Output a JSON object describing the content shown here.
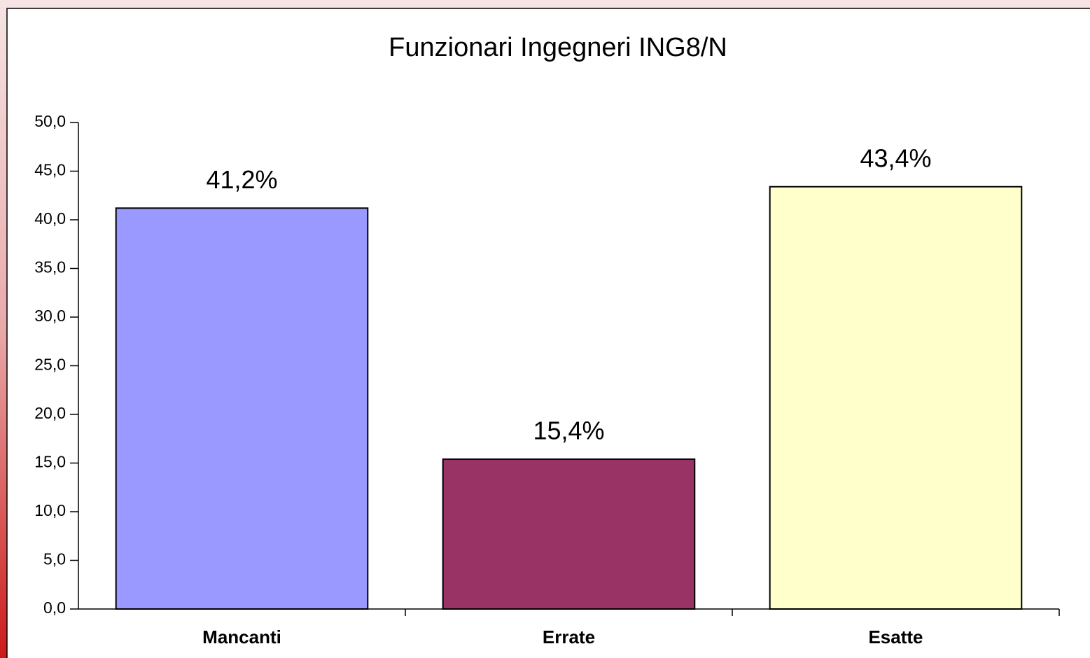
{
  "chart_data": {
    "type": "bar",
    "title": "Funzionari Ingegneri ING8/N",
    "categories": [
      "Mancanti",
      "Errate",
      "Esatte"
    ],
    "values": [
      41.2,
      15.4,
      43.4
    ],
    "value_labels": [
      "41,2%",
      "15,4%",
      "43,4%"
    ],
    "colors": [
      "#9999ff",
      "#993366",
      "#ffffcc"
    ],
    "ylim": [
      0,
      50
    ],
    "yticks": [
      {
        "value": 0,
        "label": "0,0"
      },
      {
        "value": 5,
        "label": "5,0"
      },
      {
        "value": 10,
        "label": "10,0"
      },
      {
        "value": 15,
        "label": "15,0"
      },
      {
        "value": 20,
        "label": "20,0"
      },
      {
        "value": 25,
        "label": "25,0"
      },
      {
        "value": 30,
        "label": "30,0"
      },
      {
        "value": 35,
        "label": "35,0"
      },
      {
        "value": 40,
        "label": "40,0"
      },
      {
        "value": 45,
        "label": "45,0"
      },
      {
        "value": 50,
        "label": "50,0"
      }
    ],
    "grid": false
  }
}
